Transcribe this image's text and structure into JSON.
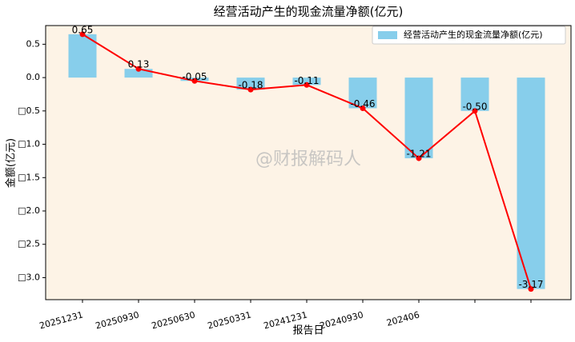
{
  "chart_data": {
    "type": "bar",
    "title": "经营活动产生的现金流量净额(亿元)",
    "xlabel": "报告日",
    "ylabel": "金额(亿元)",
    "watermark": "@财报解码人",
    "categories": [
      "20251231",
      "20250930",
      "20250630",
      "20250331",
      "20241231",
      "20240930",
      "202406",
      null,
      null
    ],
    "series": [
      {
        "name": "经营活动产生的现金流量净额(亿元)",
        "color": "#87ceeb",
        "values": [
          0.65,
          0.13,
          -0.05,
          -0.18,
          -0.11,
          -0.46,
          -1.21,
          -0.5,
          -3.17
        ],
        "value_labels": [
          "0.65",
          "0.13",
          "-0.05",
          "-0.18",
          "-0.11",
          "-0.46",
          "-1.21",
          "-0.50",
          "-3.17"
        ]
      }
    ],
    "line_color": "#ff0000",
    "ylim": [
      -3.33,
      0.78
    ],
    "yticks": [
      {
        "value": 0.5,
        "label": "0.5"
      },
      {
        "value": 0,
        "label": "0.0"
      },
      {
        "value": -0.5,
        "label": "□0.5"
      },
      {
        "value": -1,
        "label": "□1.0"
      },
      {
        "value": -1.5,
        "label": "□1.5"
      },
      {
        "value": -2,
        "label": "□2.0"
      },
      {
        "value": -2.5,
        "label": "□2.5"
      },
      {
        "value": -3,
        "label": "□3.0"
      }
    ],
    "legend": "upper right",
    "background": "#fdf3e6"
  }
}
